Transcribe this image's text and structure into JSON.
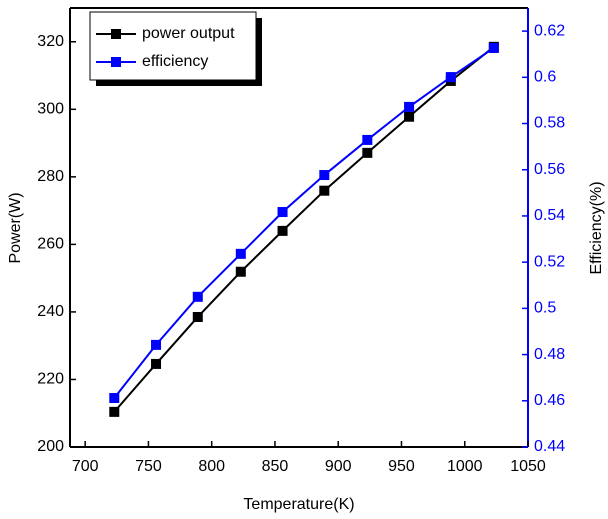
{
  "chart_data": {
    "type": "line",
    "x_label": "Temperature(K)",
    "y_label": "Power(W)",
    "y2_label": "Efficiency(%)",
    "x": [
      723,
      756,
      789,
      823,
      856,
      889,
      923,
      956,
      989,
      1023
    ],
    "series": [
      {
        "name": "power output",
        "color": "#000000",
        "axis": "y",
        "values": [
          210.4,
          224.6,
          238.5,
          251.9,
          264.0,
          275.9,
          287.1,
          297.8,
          308.4,
          318.5
        ]
      },
      {
        "name": "efficiency",
        "color": "#0000ff",
        "axis": "y2",
        "values": [
          0.4612,
          0.4842,
          0.505,
          0.5236,
          0.5417,
          0.5577,
          0.5729,
          0.5872,
          0.6001,
          0.6127
        ]
      }
    ],
    "xlim": [
      688,
      1050
    ],
    "xticks": [
      700,
      750,
      800,
      850,
      900,
      950,
      1000,
      1050
    ],
    "ylim": [
      200,
      330
    ],
    "yticks": [
      200,
      220,
      240,
      260,
      280,
      300,
      320
    ],
    "y2lim": [
      0.44,
      0.63
    ],
    "y2ticks": [
      0.44,
      0.46,
      0.48,
      0.5,
      0.52,
      0.54,
      0.56,
      0.58,
      0.6,
      0.62
    ],
    "y2_color": "#0000ff",
    "legend": "upper left"
  }
}
